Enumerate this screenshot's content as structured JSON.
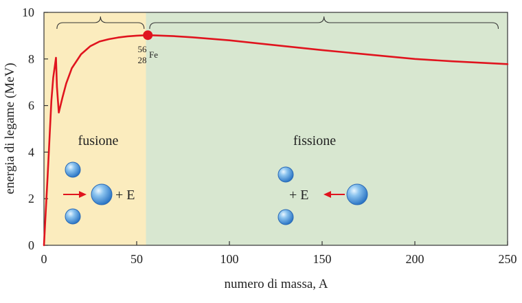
{
  "chart_data": {
    "type": "line",
    "title": "",
    "xlabel": "numero di massa, A",
    "ylabel": "energia di legame (MeV)",
    "xlim": [
      0,
      250
    ],
    "ylim": [
      0,
      10
    ],
    "x_ticks": [
      0,
      50,
      100,
      150,
      200,
      250
    ],
    "y_ticks": [
      0,
      2,
      4,
      6,
      8,
      10
    ],
    "grid": false,
    "series": [
      {
        "name": "",
        "color": "#e0141e",
        "x": [
          0,
          1,
          2,
          3,
          4,
          5,
          6.5,
          7,
          8,
          10,
          12,
          15,
          20,
          25,
          30,
          35,
          40,
          45,
          50,
          56,
          60,
          70,
          80,
          100,
          120,
          150,
          180,
          200,
          220,
          250
        ],
        "y": [
          0,
          1.5,
          3.0,
          4.6,
          6.2,
          7.2,
          8.05,
          6.8,
          5.7,
          6.35,
          6.95,
          7.6,
          8.2,
          8.55,
          8.75,
          8.85,
          8.92,
          8.97,
          9.0,
          9.02,
          9.01,
          8.98,
          8.93,
          8.8,
          8.63,
          8.38,
          8.15,
          8.0,
          7.9,
          7.78
        ]
      }
    ],
    "highlight_point": {
      "x": 56,
      "y": 9.02,
      "color": "#e0141e"
    },
    "regions": [
      {
        "name": "fusion",
        "label": "fusione",
        "x_start": 0,
        "x_end": 55,
        "color": "#fbecbe"
      },
      {
        "name": "fission",
        "label": "fissione",
        "x_start": 55,
        "x_end": 250,
        "color": "#d8e7d0"
      }
    ],
    "annotations": {
      "isotope": {
        "mass": "56",
        "atomic": "28",
        "symbol": "Fe"
      },
      "fusion_energy": "+ E",
      "fission_energy": "+ E"
    }
  },
  "colors": {
    "curve": "#e0141e",
    "nucleus": "#4a9be0",
    "fusion_bg": "#fbecbe",
    "fission_bg": "#d8e7d0"
  }
}
